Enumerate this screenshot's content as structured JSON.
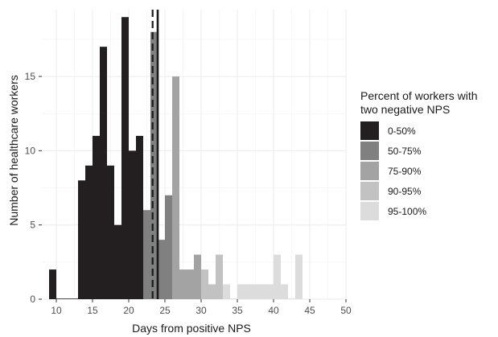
{
  "chart_data": {
    "type": "bar",
    "xlabel": "Days from positive NPS",
    "ylabel": "Number of healthcare workers",
    "xlim": [
      8,
      50
    ],
    "ylim": [
      0,
      19.5
    ],
    "x_ticks": [
      10,
      15,
      20,
      25,
      30,
      35,
      40,
      45,
      50
    ],
    "y_ticks": [
      0,
      5,
      10,
      15
    ],
    "grid": true,
    "legend": {
      "title": "Percent of workers with\ntwo negative NPS",
      "title_lines": [
        "Percent of workers with",
        "two negative NPS"
      ],
      "placement": "right",
      "entries": [
        {
          "label": "0-50%",
          "color": "#231f20"
        },
        {
          "label": "50-75%",
          "color": "#808080"
        },
        {
          "label": "75-90%",
          "color": "#a3a3a3"
        },
        {
          "label": "90-95%",
          "color": "#c2c2c2"
        },
        {
          "label": "95-100%",
          "color": "#dcdcdc"
        }
      ]
    },
    "bin_width": 1,
    "bars": [
      {
        "x": 9,
        "value": 2,
        "group": 0
      },
      {
        "x": 10,
        "value": 0,
        "group": 0
      },
      {
        "x": 11,
        "value": 0,
        "group": 0
      },
      {
        "x": 12,
        "value": 0,
        "group": 0
      },
      {
        "x": 13,
        "value": 8,
        "group": 0
      },
      {
        "x": 14,
        "value": 9,
        "group": 0
      },
      {
        "x": 15,
        "value": 11,
        "group": 0
      },
      {
        "x": 16,
        "value": 17,
        "group": 0
      },
      {
        "x": 17,
        "value": 9,
        "group": 0
      },
      {
        "x": 18,
        "value": 5,
        "group": 0
      },
      {
        "x": 19,
        "value": 19,
        "group": 0
      },
      {
        "x": 20,
        "value": 10,
        "group": 0
      },
      {
        "x": 21,
        "value": 11,
        "group": 0
      },
      {
        "x": 22,
        "value": 6,
        "group": 1
      },
      {
        "x": 23,
        "value": 18,
        "group": 1
      },
      {
        "x": 24,
        "value": 4,
        "group": 1
      },
      {
        "x": 25,
        "value": 7,
        "group": 1
      },
      {
        "x": 26,
        "value": 15,
        "group": 2
      },
      {
        "x": 27,
        "value": 2,
        "group": 2
      },
      {
        "x": 28,
        "value": 2,
        "group": 2
      },
      {
        "x": 29,
        "value": 3,
        "group": 2
      },
      {
        "x": 30,
        "value": 2,
        "group": 3
      },
      {
        "x": 31,
        "value": 1,
        "group": 3
      },
      {
        "x": 32,
        "value": 3,
        "group": 3
      },
      {
        "x": 33,
        "value": 1,
        "group": 4
      },
      {
        "x": 34,
        "value": 0,
        "group": 4
      },
      {
        "x": 35,
        "value": 1,
        "group": 4
      },
      {
        "x": 36,
        "value": 1,
        "group": 4
      },
      {
        "x": 37,
        "value": 1,
        "group": 4
      },
      {
        "x": 38,
        "value": 1,
        "group": 4
      },
      {
        "x": 39,
        "value": 1,
        "group": 4
      },
      {
        "x": 40,
        "value": 3,
        "group": 4
      },
      {
        "x": 41,
        "value": 1,
        "group": 4
      },
      {
        "x": 42,
        "value": 0,
        "group": 4
      },
      {
        "x": 43,
        "value": 3,
        "group": 4
      }
    ],
    "reference_lines": [
      {
        "x": 23.3,
        "style": "dashed",
        "color": "#1a1a1a"
      },
      {
        "x": 24.0,
        "style": "solid",
        "color": "#1a1a1a"
      }
    ]
  }
}
